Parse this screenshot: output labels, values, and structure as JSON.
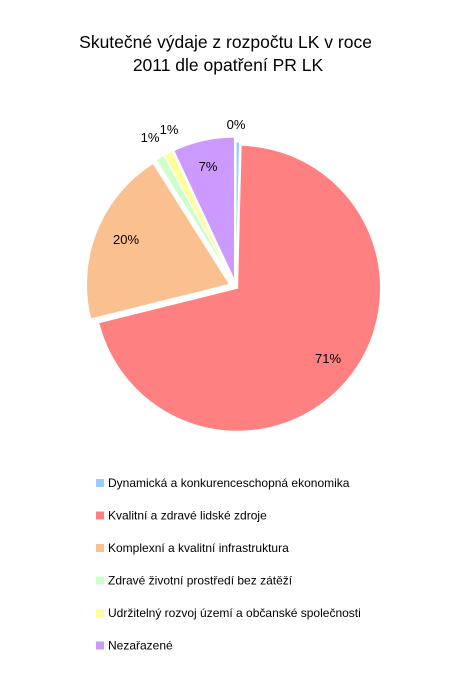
{
  "chart_data": {
    "type": "pie",
    "title": "Skutečné výdaje z rozpočtu LK v roce 2011 dle opatření PR LK",
    "title_lines": [
      "Skutečné výdaje z rozpočtu LK v roce",
      "2011 dle opatření PR LK"
    ],
    "legend_position": "bottom",
    "exploded": true,
    "slices": [
      {
        "label": "Dynamická a konkurenceschopná ekonomika",
        "value": 0.4,
        "display": "0%",
        "color": "#99ccff"
      },
      {
        "label": "Kvalitní a zdravé lidské zdroje",
        "value": 71,
        "display": "71%",
        "color": "#ff8080"
      },
      {
        "label": "Komplexní a kvalitní infrastruktura",
        "value": 20,
        "display": "20%",
        "color": "#fac090"
      },
      {
        "label": "Zdravé životní prostředí bez zátěží",
        "value": 1,
        "display": "1%",
        "color": "#ccffcc"
      },
      {
        "label": "Udržitelný rozvoj území a občanské společnosti",
        "value": 1,
        "display": "1%",
        "color": "#ffff99"
      },
      {
        "label": "Nezařazené",
        "value": 7,
        "display": "7%",
        "color": "#cc99ff"
      }
    ]
  }
}
